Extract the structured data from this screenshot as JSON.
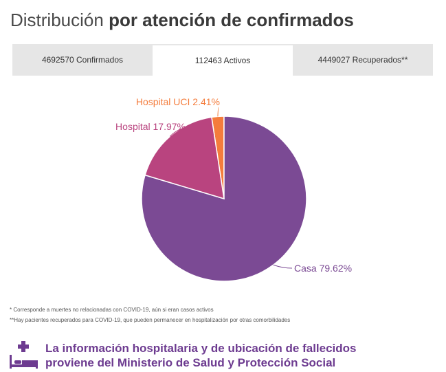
{
  "header": {
    "title_light": "Distribución",
    "title_bold": "por atención de confirmados"
  },
  "tabs": [
    {
      "label": "4692570 Confirmados",
      "active": false
    },
    {
      "label": "112463 Activos",
      "active": true
    },
    {
      "label": "4449027 Recuperados**",
      "active": false
    }
  ],
  "chart_data": {
    "type": "pie",
    "slices": [
      {
        "label": "Casa 79.62%",
        "value": 79.62,
        "color": "#7b4a94"
      },
      {
        "label": "Hospital 17.97%",
        "value": 17.97,
        "color": "#b9447f"
      },
      {
        "label": "Hospital UCI 2.41%",
        "value": 2.41,
        "color": "#f47c3c"
      }
    ]
  },
  "notes": [
    "* Corresponde a muertes no relacionadas con COVID-19, aún si eran casos activos",
    "**Hay pacientes recuperados para COVID-19, que pueden permanecer en hospitalización por otras comorbilidades"
  ],
  "banner": {
    "line1": "La información hospitalaria y de ubicación de fallecidos",
    "line2": "proviene del Ministerio de Salud y Protección Social",
    "color": "#6d3b90",
    "icon": "hospital-bed-icon"
  }
}
